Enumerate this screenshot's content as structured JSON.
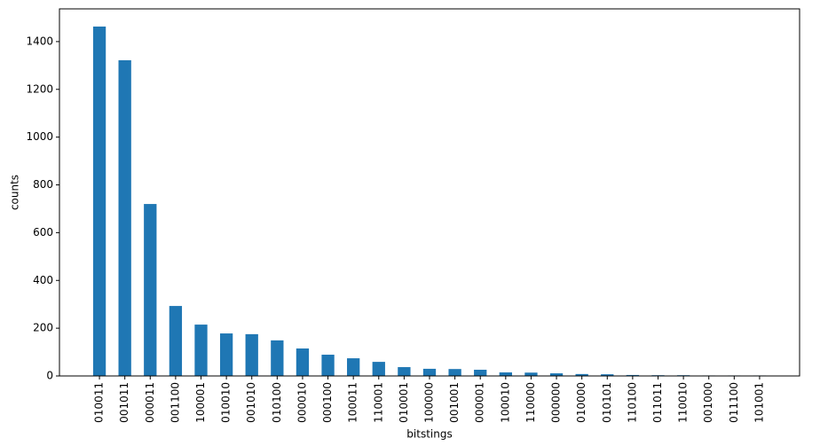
{
  "chart_data": {
    "type": "bar",
    "xlabel": "bitstings",
    "ylabel": "counts",
    "categories": [
      "010011",
      "001011",
      "000011",
      "001100",
      "100001",
      "010010",
      "001010",
      "010100",
      "000010",
      "000100",
      "100011",
      "110001",
      "010001",
      "100000",
      "001001",
      "000001",
      "100010",
      "110000",
      "000000",
      "010000",
      "010101",
      "110100",
      "011011",
      "110010",
      "001000",
      "011100",
      "101001"
    ],
    "values": [
      1463,
      1322,
      720,
      293,
      215,
      178,
      175,
      149,
      115,
      89,
      74,
      59,
      37,
      30,
      29,
      26,
      15,
      14,
      11,
      8,
      7,
      4,
      3,
      3,
      2,
      2,
      2
    ],
    "color": "#1f77b4",
    "ylim": [
      0,
      1537
    ],
    "yticks": [
      0,
      200,
      400,
      600,
      800,
      1000,
      1200,
      1400
    ]
  }
}
